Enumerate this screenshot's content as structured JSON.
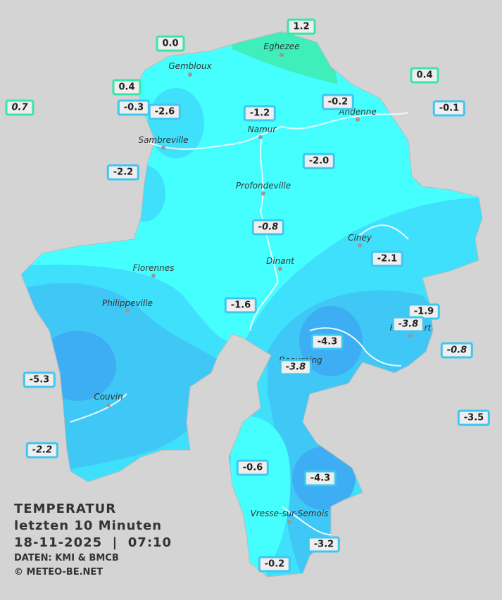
{
  "stations": [
    {
      "label": "1.2",
      "italic": false
    },
    {
      "label": "0.0",
      "italic": false
    },
    {
      "label": "0.4",
      "italic": false
    },
    {
      "label": "0.4",
      "italic": false
    },
    {
      "label": "0.7",
      "italic": true
    },
    {
      "label": "-0.3",
      "italic": false
    },
    {
      "label": "-2.6",
      "italic": false
    },
    {
      "label": "-1.2",
      "italic": false
    },
    {
      "label": "-0.2",
      "italic": false
    },
    {
      "label": "-0.1",
      "italic": false
    },
    {
      "label": "-2.2",
      "italic": false
    },
    {
      "label": "-2.0",
      "italic": false
    },
    {
      "label": "-0.8",
      "italic": true
    },
    {
      "label": "-2.1",
      "italic": false
    },
    {
      "label": "-1.6",
      "italic": false
    },
    {
      "label": "-1.9",
      "italic": false
    },
    {
      "label": "-3.8",
      "italic": true
    },
    {
      "label": "-4.3",
      "italic": false
    },
    {
      "label": "-0.8",
      "italic": true
    },
    {
      "label": "-3.8",
      "italic": true
    },
    {
      "label": "-5.3",
      "italic": false
    },
    {
      "label": "-3.5",
      "italic": false
    },
    {
      "label": "-2.2",
      "italic": true
    },
    {
      "label": "-0.6",
      "italic": false
    },
    {
      "label": "-4.3",
      "italic": false
    },
    {
      "label": "-3.2",
      "italic": false
    },
    {
      "label": "-0.2",
      "italic": false
    }
  ],
  "cities": [
    "Eghezee",
    "Gembloux",
    "Andenne",
    "Namur",
    "Sambreville",
    "Profondeville",
    "Ciney",
    "Dinant",
    "Florennes",
    "Philippeville",
    "Rochefort",
    "Beauraing",
    "Couvin",
    "Vresse-sur-Semois"
  ],
  "legend": {
    "title": "TEMPERATUR",
    "subtitle": "letzten 10 Minuten",
    "datetime": "18-11-2025  |  07:10",
    "source": "DATEN: KMI & BMCB",
    "copyright": "© METEO-BE.NET"
  }
}
